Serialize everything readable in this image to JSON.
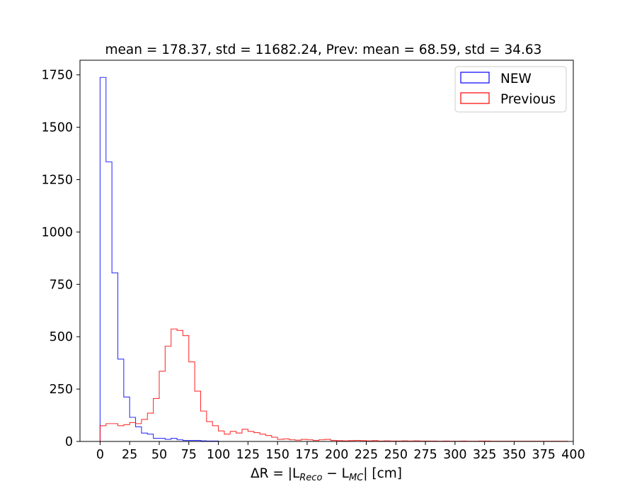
{
  "chart_data": {
    "type": "histogram",
    "title": "mean = 178.37, std = 11682.24, Prev: mean = 68.59, std = 34.63",
    "xlabel": "ΔR = |L_Reco − L_MC| [cm]",
    "xlabel_parts": {
      "prefix": "ΔR = |L",
      "sub1": "Reco",
      "mid": " − L",
      "sub2": "MC",
      "suffix": "| [cm]"
    },
    "ylabel": "",
    "xlim": [
      -17,
      400
    ],
    "ylim": [
      0,
      1820
    ],
    "xticks": [
      0,
      25,
      50,
      75,
      100,
      125,
      150,
      175,
      200,
      225,
      250,
      275,
      300,
      325,
      350,
      375,
      400
    ],
    "yticks": [
      0,
      250,
      500,
      750,
      1000,
      1250,
      1500,
      1750
    ],
    "bin_edges_start": 0,
    "bin_width": 5,
    "legend_position": "top-right",
    "grid": false,
    "series": [
      {
        "name": "NEW",
        "color": "#0000ff",
        "values": [
          1738,
          1335,
          805,
          393,
          212,
          115,
          70,
          40,
          35,
          15,
          15,
          10,
          15,
          8,
          5,
          5,
          5,
          3,
          2,
          2,
          0,
          0,
          0,
          0,
          0,
          0,
          0,
          0,
          0,
          0,
          0,
          0,
          0,
          0,
          0,
          0,
          0,
          0,
          0,
          0,
          0,
          0,
          0,
          0,
          0,
          0,
          0,
          0,
          0,
          0,
          0,
          0,
          0,
          0,
          0,
          0,
          0,
          0,
          0,
          0,
          0,
          0,
          0,
          0,
          0,
          0,
          0,
          0,
          0,
          0,
          0,
          0,
          0,
          0,
          0,
          0,
          0,
          0,
          0,
          0
        ]
      },
      {
        "name": "Previous",
        "color": "#ff0000",
        "values": [
          75,
          85,
          85,
          75,
          80,
          90,
          85,
          105,
          135,
          205,
          335,
          455,
          537,
          530,
          505,
          380,
          240,
          145,
          95,
          75,
          50,
          35,
          48,
          40,
          58,
          48,
          42,
          35,
          28,
          20,
          10,
          12,
          8,
          6,
          10,
          8,
          5,
          8,
          10,
          5,
          4,
          3,
          4,
          5,
          4,
          3,
          4,
          2,
          3,
          2,
          2,
          3,
          2,
          3,
          2,
          2,
          2,
          1,
          2,
          1,
          1,
          2,
          1,
          1,
          2,
          2,
          1,
          1,
          1,
          1,
          1,
          1,
          1,
          1,
          1,
          1,
          1,
          1,
          1,
          0
        ]
      }
    ]
  }
}
